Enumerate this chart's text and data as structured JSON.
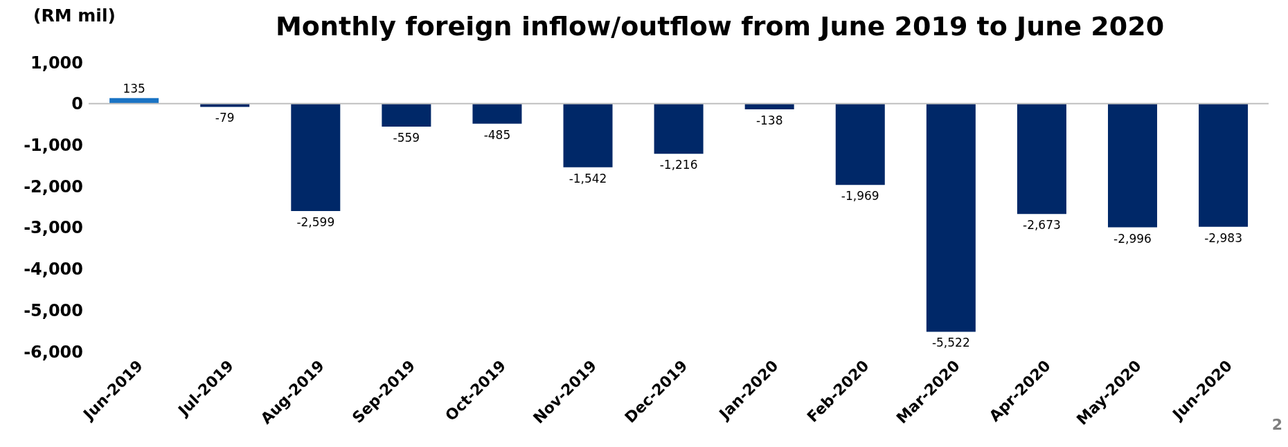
{
  "chart_data": {
    "type": "bar",
    "title": "Monthly foreign inflow/outflow from June 2019 to June 2020",
    "ylabel": "(RM mil)",
    "categories": [
      "Jun-2019",
      "Jul-2019",
      "Aug-2019",
      "Sep-2019",
      "Oct-2019",
      "Nov-2019",
      "Dec-2019",
      "Jan-2020",
      "Feb-2020",
      "Mar-2020",
      "Apr-2020",
      "May-2020",
      "Jun-2020"
    ],
    "values": [
      135,
      -79,
      -2599,
      -559,
      -485,
      -1542,
      -1216,
      -138,
      -1969,
      -5522,
      -2673,
      -2996,
      -2983
    ],
    "value_labels": [
      "135",
      "-79",
      "-2,599",
      "-559",
      "-485",
      "-1,542",
      "-1,216",
      "-138",
      "-1,969",
      "-5,522",
      "-2,673",
      "-2,996",
      "-2,983"
    ],
    "colors": [
      "#1a73c4",
      "#002868",
      "#002868",
      "#002868",
      "#002868",
      "#002868",
      "#002868",
      "#002868",
      "#002868",
      "#002868",
      "#002868",
      "#002868",
      "#002868"
    ],
    "ylim": [
      -6000,
      1000
    ],
    "yticks": [
      {
        "value": -6000,
        "label": "-6,000"
      },
      {
        "value": -5000,
        "label": "-5,000"
      },
      {
        "value": -4000,
        "label": "-4,000"
      },
      {
        "value": -3000,
        "label": "-3,000"
      },
      {
        "value": -2000,
        "label": "-2,000"
      },
      {
        "value": -1000,
        "label": "-1,000"
      },
      0,
      {
        "value": 1000,
        "label": "1,000"
      }
    ],
    "ref_lines": [
      {
        "axis": "y",
        "value": 0,
        "color": "#bfbfbf"
      }
    ],
    "legend": false,
    "annotations": [
      "2"
    ]
  }
}
